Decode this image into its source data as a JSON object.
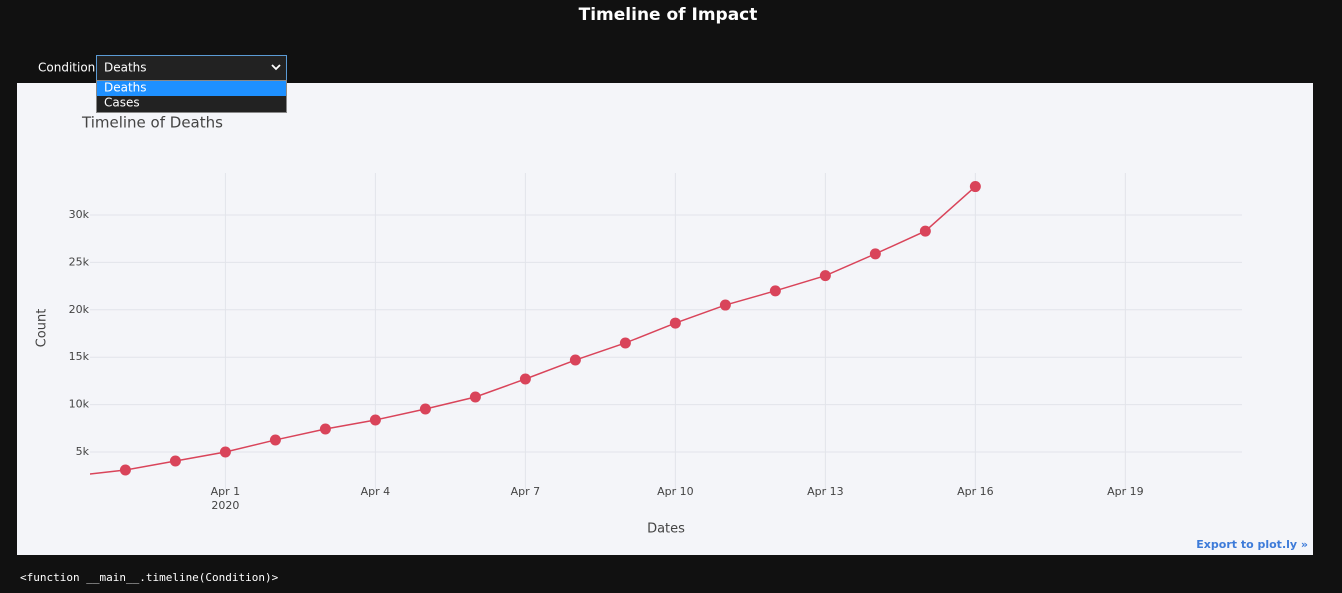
{
  "page_title": "Timeline of Impact",
  "dropdown": {
    "label": "Condition",
    "selected": "Deaths",
    "options": [
      "Deaths",
      "Cases"
    ]
  },
  "chart_data": {
    "type": "line",
    "title": "Timeline of Deaths",
    "x_label": "Dates",
    "y_label": "Count",
    "x": [
      "2020-03-29",
      "2020-03-30",
      "2020-03-31",
      "2020-04-01",
      "2020-04-02",
      "2020-04-03",
      "2020-04-04",
      "2020-04-05",
      "2020-04-06",
      "2020-04-07",
      "2020-04-08",
      "2020-04-09",
      "2020-04-10",
      "2020-04-11",
      "2020-04-12",
      "2020-04-13",
      "2020-04-14",
      "2020-04-15",
      "2020-04-16"
    ],
    "values": [
      2500,
      3100,
      4050,
      5000,
      6270,
      7430,
      8380,
      9540,
      10800,
      12700,
      14700,
      16500,
      18600,
      20500,
      22000,
      23600,
      25900,
      28300,
      33000
    ],
    "color": "#d9445a",
    "xlim": [
      "2020-03-29T07:00",
      "2020-04-21T08:00"
    ],
    "xticks": [
      {
        "value": "2020-04-01",
        "label": "Apr 1"
      },
      {
        "value": "2020-04-04",
        "label": "Apr 4"
      },
      {
        "value": "2020-04-07",
        "label": "Apr 7"
      },
      {
        "value": "2020-04-10",
        "label": "Apr 10"
      },
      {
        "value": "2020-04-13",
        "label": "Apr 13"
      },
      {
        "value": "2020-04-16",
        "label": "Apr 16"
      },
      {
        "value": "2020-04-19",
        "label": "Apr 19"
      }
    ],
    "xtick_year": "2020",
    "ylim": [
      780,
      34430
    ],
    "yticks": [
      {
        "value": 5000,
        "label": "5k"
      },
      {
        "value": 10000,
        "label": "10k"
      },
      {
        "value": 15000,
        "label": "15k"
      },
      {
        "value": 20000,
        "label": "20k"
      },
      {
        "value": 25000,
        "label": "25k"
      },
      {
        "value": 30000,
        "label": "30k"
      }
    ],
    "grid": true
  },
  "export_link": "Export to plot.ly »",
  "output_text": "<function __main__.timeline(Condition)>"
}
